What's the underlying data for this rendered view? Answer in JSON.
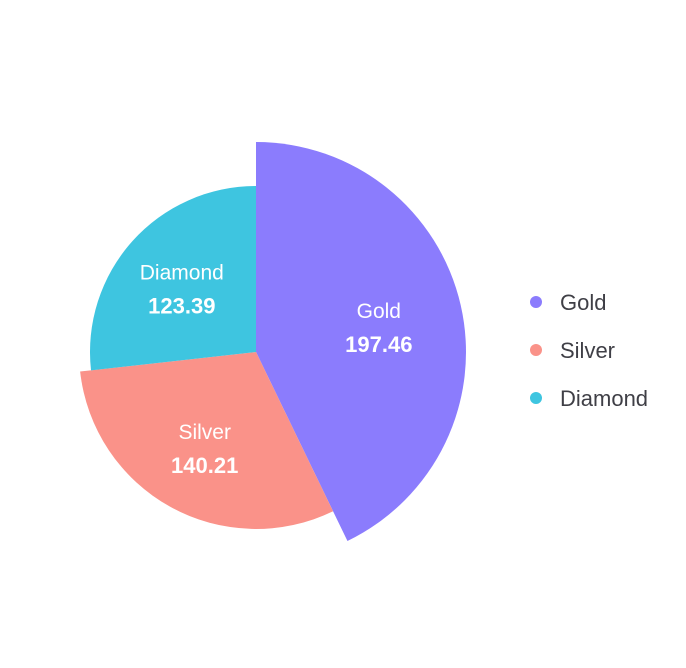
{
  "chart_data": {
    "type": "pie",
    "variant": "polar-area",
    "categories": [
      "Gold",
      "Silver",
      "Diamond"
    ],
    "values": [
      197.46,
      140.21,
      123.39
    ],
    "colors": [
      "#8b7cfd",
      "#fa9289",
      "#3ec5e0"
    ],
    "legend": {
      "position": "right",
      "entries": [
        "Gold",
        "Silver",
        "Diamond"
      ]
    },
    "data_labels": {
      "show_name": true,
      "show_value": true,
      "value_format": "0.00"
    },
    "title": "",
    "start_angle": "12 o'clock",
    "direction": "clockwise"
  }
}
